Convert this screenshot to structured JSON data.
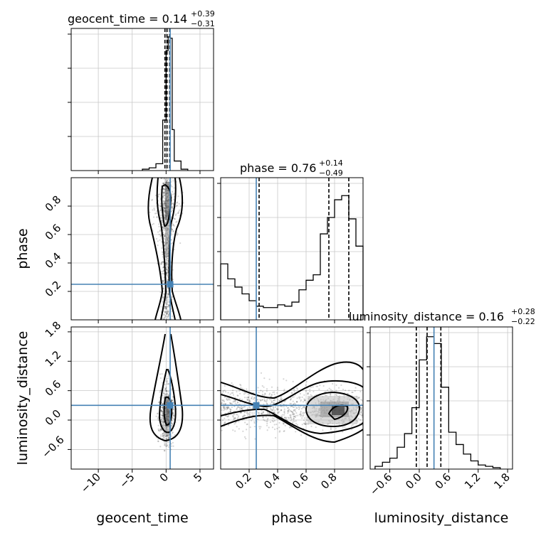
{
  "chart_data": {
    "type": "corner",
    "parameters": [
      "geocent_time",
      "phase",
      "luminosity_distance"
    ],
    "truth": {
      "geocent_time": 0.6,
      "phase": 0.25,
      "luminosity_distance": 0.3
    },
    "truth_color": "#4682b4",
    "grid": true,
    "titles": [
      {
        "name": "geocent_time",
        "median": "0.14",
        "plus": "+0.39",
        "minus": "−0.31"
      },
      {
        "name": "phase",
        "median": "0.76",
        "plus": "+0.14",
        "minus": "−0.49"
      },
      {
        "name": "luminosity_distance",
        "median": "0.16",
        "plus": "+0.28",
        "minus": "−0.22"
      }
    ],
    "ranges": {
      "geocent_time": [
        -14,
        7
      ],
      "phase": [
        0.0,
        1.0
      ],
      "luminosity_distance": [
        -1.0,
        1.9
      ]
    },
    "ticks": {
      "geocent_time": {
        "values": [
          -10,
          -5,
          0,
          5
        ],
        "labels": [
          "−10",
          "−5",
          "0",
          "5"
        ]
      },
      "phase_x": {
        "values": [
          0.2,
          0.4,
          0.6,
          0.8
        ],
        "labels": [
          "0.2",
          "0.4",
          "0.6",
          "0.8"
        ]
      },
      "phase_y": {
        "values": [
          0.2,
          0.4,
          0.6,
          0.8
        ],
        "labels": [
          "0.2",
          "0.4",
          "0.6",
          "0.8"
        ]
      },
      "luminosity_distance": {
        "values": [
          -0.6,
          0.0,
          0.6,
          1.2,
          1.8
        ],
        "labels": [
          "−0.6",
          "0.0",
          "0.6",
          "1.2",
          "1.8"
        ]
      }
    },
    "hist_geocent_time": {
      "edges": [
        -3.5,
        -2.5,
        -1.5,
        -0.5,
        0.0,
        0.3,
        0.6,
        0.9,
        1.2,
        2.2,
        3.2
      ],
      "counts": [
        0.01,
        0.02,
        0.05,
        0.37,
        0.88,
        0.98,
        0.97,
        0.3,
        0.07,
        0.01
      ]
    },
    "hist_phase": {
      "edges": [
        0.0,
        0.05,
        0.1,
        0.15,
        0.2,
        0.25,
        0.3,
        0.35,
        0.4,
        0.45,
        0.5,
        0.55,
        0.6,
        0.65,
        0.7,
        0.75,
        0.8,
        0.85,
        0.9,
        0.95,
        1.0
      ],
      "counts": [
        0.41,
        0.3,
        0.24,
        0.19,
        0.14,
        0.1,
        0.09,
        0.09,
        0.11,
        0.1,
        0.13,
        0.22,
        0.29,
        0.33,
        0.63,
        0.75,
        0.88,
        0.91,
        0.74,
        0.54
      ]
    },
    "hist_luminosity_distance": {
      "edges": [
        -0.9,
        -0.75,
        -0.6,
        -0.45,
        -0.3,
        -0.15,
        0.0,
        0.15,
        0.3,
        0.45,
        0.6,
        0.75,
        0.9,
        1.05,
        1.2,
        1.35,
        1.5,
        1.65
      ],
      "counts": [
        0.02,
        0.05,
        0.08,
        0.16,
        0.26,
        0.45,
        0.8,
        0.97,
        0.92,
        0.6,
        0.27,
        0.18,
        0.11,
        0.06,
        0.03,
        0.02,
        0.01
      ]
    },
    "quantiles": {
      "geocent_time": [
        -0.17,
        0.14,
        0.53
      ],
      "phase": [
        0.27,
        0.76,
        0.9
      ],
      "luminosity_distance": [
        -0.06,
        0.16,
        0.44
      ]
    }
  }
}
